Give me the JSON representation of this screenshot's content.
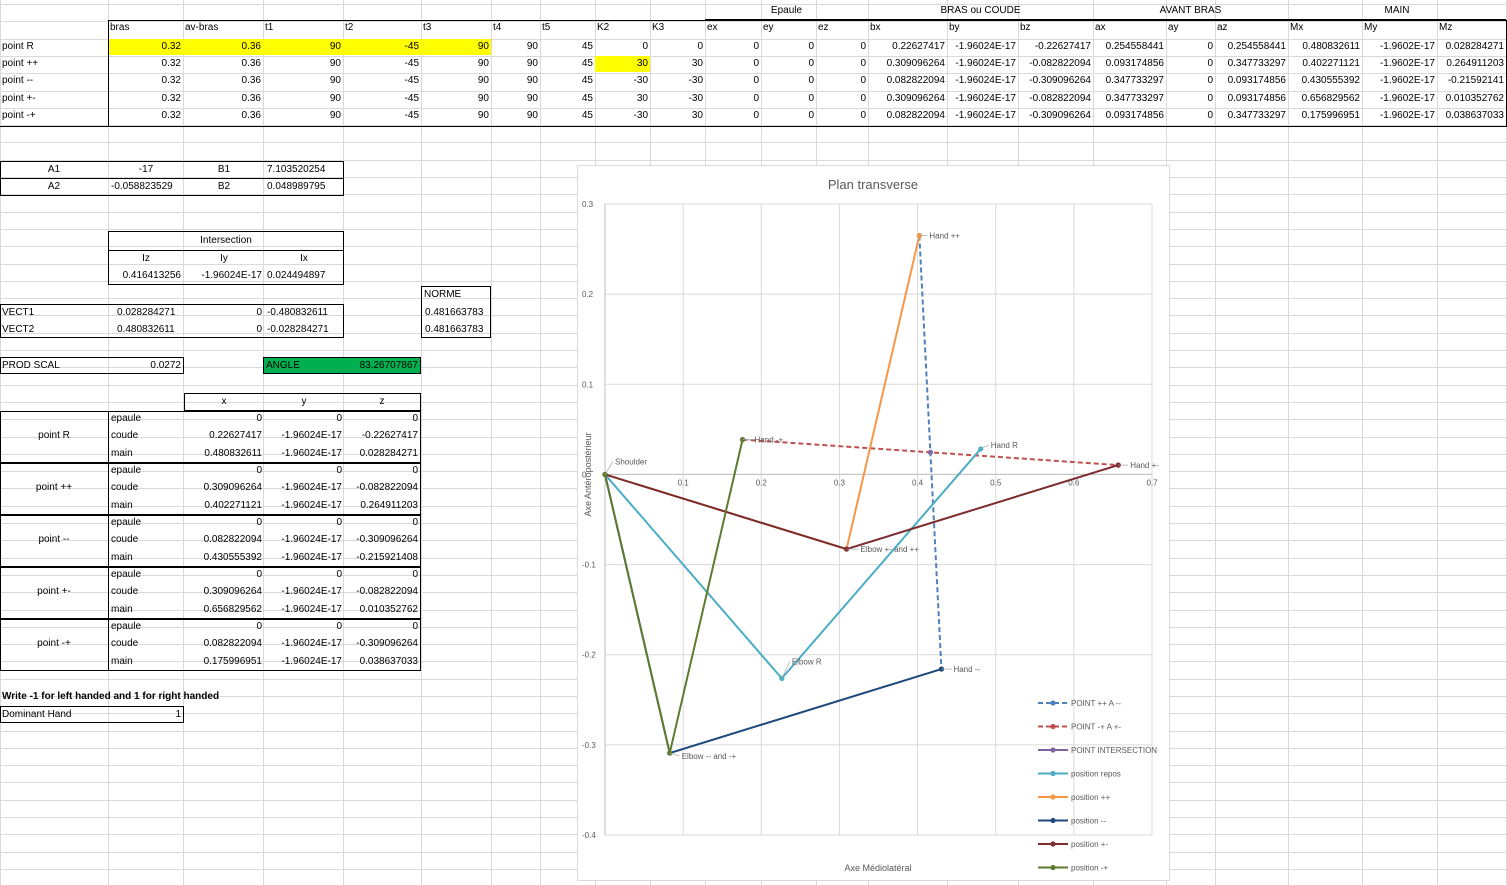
{
  "top": {
    "group_headers": [
      "Epaule",
      "BRAS ou COUDE",
      "AVANT BRAS",
      "MAIN"
    ],
    "columns": [
      "bras",
      "av-bras",
      "t1",
      "t2",
      "t3",
      "t4",
      "t5",
      "K2",
      "K3",
      "ex",
      "ey",
      "ez",
      "bx",
      "by",
      "bz",
      "ax",
      "ay",
      "az",
      "Mx",
      "My",
      "Mz"
    ],
    "rows": [
      {
        "label": "point R",
        "values": [
          "0.32",
          "0.36",
          "90",
          "-45",
          "90",
          "90",
          "45",
          "0",
          "0",
          "0",
          "0",
          "0",
          "0.22627417",
          "-1.96024E-17",
          "-0.22627417",
          "0.254558441",
          "0",
          "0.254558441",
          "0.480832611",
          "-1.9602E-17",
          "0.028284271"
        ]
      },
      {
        "label": "point ++",
        "values": [
          "0.32",
          "0.36",
          "90",
          "-45",
          "90",
          "90",
          "45",
          "30",
          "30",
          "0",
          "0",
          "0",
          "0.309096264",
          "-1.96024E-17",
          "-0.082822094",
          "0.093174856",
          "0",
          "0.347733297",
          "0.402271121",
          "-1.9602E-17",
          "0.264911203"
        ]
      },
      {
        "label": "point --",
        "values": [
          "0.32",
          "0.36",
          "90",
          "-45",
          "90",
          "90",
          "45",
          "-30",
          "-30",
          "0",
          "0",
          "0",
          "0.082822094",
          "-1.96024E-17",
          "-0.309096264",
          "0.347733297",
          "0",
          "0.093174856",
          "0.430555392",
          "-1.9602E-17",
          "-0.21592141"
        ]
      },
      {
        "label": "point +-",
        "values": [
          "0.32",
          "0.36",
          "90",
          "-45",
          "90",
          "90",
          "45",
          "30",
          "-30",
          "0",
          "0",
          "0",
          "0.309096264",
          "-1.96024E-17",
          "-0.082822094",
          "0.347733297",
          "0",
          "0.093174856",
          "0.656829562",
          "-1.9602E-17",
          "0.010352762"
        ]
      },
      {
        "label": "point -+",
        "values": [
          "0.32",
          "0.36",
          "90",
          "-45",
          "90",
          "90",
          "45",
          "-30",
          "30",
          "0",
          "0",
          "0",
          "0.082822094",
          "-1.96024E-17",
          "-0.309096264",
          "0.093174856",
          "0",
          "0.347733297",
          "0.175996951",
          "-1.9602E-17",
          "0.038637033"
        ]
      }
    ]
  },
  "coeffs": {
    "a1_label": "A1",
    "a1": "-17",
    "b1_label": "B1",
    "b1": "7.103520254",
    "a2_label": "A2",
    "a2": "-0.058823529",
    "b2_label": "B2",
    "b2": "0.048989795"
  },
  "intersection": {
    "title": "Intersection",
    "iz_label": "Iz",
    "iy_label": "Iy",
    "ix_label": "Ix",
    "iz": "0.416413256",
    "iy": "-1.96024E-17",
    "ix": "0.024494897"
  },
  "vectors": {
    "norme_label": "NORME",
    "vect1_label": "VECT1",
    "vect1": [
      "0.028284271",
      "0",
      "-0.480832611"
    ],
    "vect1_norme": "0.481663783",
    "vect2_label": "VECT2",
    "vect2": [
      "0.480832611",
      "0",
      "-0.028284271"
    ],
    "vect2_norme": "0.481663783"
  },
  "prod": {
    "label": "PROD SCAL",
    "value": "0.0272",
    "angle_label": "ANGLE",
    "angle": "83.26707867"
  },
  "points_table": {
    "headers": [
      "x",
      "y",
      "z"
    ],
    "sublabels": [
      "epaule",
      "coude",
      "main"
    ],
    "groups": [
      {
        "label": "point R",
        "rows": [
          [
            "0",
            "0",
            "0"
          ],
          [
            "0.22627417",
            "-1.96024E-17",
            "-0.22627417"
          ],
          [
            "0.480832611",
            "-1.96024E-17",
            "0.028284271"
          ]
        ]
      },
      {
        "label": "point ++",
        "rows": [
          [
            "0",
            "0",
            "0"
          ],
          [
            "0.309096264",
            "-1.96024E-17",
            "-0.082822094"
          ],
          [
            "0.402271121",
            "-1.96024E-17",
            "0.264911203"
          ]
        ]
      },
      {
        "label": "point --",
        "rows": [
          [
            "0",
            "0",
            "0"
          ],
          [
            "0.082822094",
            "-1.96024E-17",
            "-0.309096264"
          ],
          [
            "0.430555392",
            "-1.96024E-17",
            "-0.215921408"
          ]
        ]
      },
      {
        "label": "point +-",
        "rows": [
          [
            "0",
            "0",
            "0"
          ],
          [
            "0.309096264",
            "-1.96024E-17",
            "-0.082822094"
          ],
          [
            "0.656829562",
            "-1.96024E-17",
            "0.010352762"
          ]
        ]
      },
      {
        "label": "point -+",
        "rows": [
          [
            "0",
            "0",
            "0"
          ],
          [
            "0.082822094",
            "-1.96024E-17",
            "-0.309096264"
          ],
          [
            "0.175996951",
            "-1.96024E-17",
            "0.038637033"
          ]
        ]
      }
    ]
  },
  "dominant": {
    "instruction": "Write -1 for left handed and 1 for right handed",
    "label": "Dominant Hand",
    "value": "1"
  },
  "chart_data": {
    "type": "scatter",
    "title": "Plan transverse",
    "xlabel": "Axe Médiolatéral",
    "ylabel": "Axe Antéropostérieur",
    "xlim": [
      0,
      0.7
    ],
    "ylim": [
      -0.4,
      0.3
    ],
    "x_ticks": [
      "0.1",
      "0.2",
      "0.3",
      "0.4",
      "0.5",
      "0.6",
      "0.7"
    ],
    "y_ticks": [
      "0.3",
      "0.2",
      "0.1",
      "0",
      "-0.1",
      "-0.2",
      "-0.3",
      "-0.4"
    ],
    "series": [
      {
        "name": "POINT ++ A --",
        "color": "#4f81bd",
        "dashed": true,
        "x": [
          0.402271121,
          0.430555392
        ],
        "y": [
          0.264911203,
          -0.215921408
        ]
      },
      {
        "name": "POINT -+ A +-",
        "color": "#c0504d",
        "dashed": true,
        "x": [
          0.175996951,
          0.656829562
        ],
        "y": [
          0.038637033,
          0.010352762
        ]
      },
      {
        "name": "POINT INTERSECTION",
        "color": "#8064a2",
        "dashed": false,
        "x": [
          0.416413256
        ],
        "y": [
          0.024494897
        ]
      },
      {
        "name": "position repos",
        "color": "#4bacc6",
        "dashed": false,
        "x": [
          0,
          0.22627417,
          0.480832611
        ],
        "y": [
          0,
          -0.22627417,
          0.028284271
        ]
      },
      {
        "name": "position ++",
        "color": "#f79646",
        "dashed": false,
        "x": [
          0,
          0.309096264,
          0.402271121
        ],
        "y": [
          0,
          -0.082822094,
          0.264911203
        ]
      },
      {
        "name": "position --",
        "color": "#1f497d",
        "dashed": false,
        "x": [
          0,
          0.082822094,
          0.430555392
        ],
        "y": [
          0,
          -0.309096264,
          -0.215921408
        ]
      },
      {
        "name": "position +-",
        "color": "#7b2c2c",
        "dashed": false,
        "x": [
          0,
          0.309096264,
          0.656829562
        ],
        "y": [
          0,
          -0.082822094,
          0.010352762
        ]
      },
      {
        "name": "position -+",
        "color": "#5e7b2f",
        "dashed": false,
        "x": [
          0,
          0.082822094,
          0.175996951
        ],
        "y": [
          0,
          -0.309096264,
          0.038637033
        ]
      }
    ],
    "annotations": [
      {
        "text": "Hand ++",
        "x": 0.402271121,
        "y": 0.264911203
      },
      {
        "text": "Hand -+",
        "x": 0.175996951,
        "y": 0.038637033
      },
      {
        "text": "Hand R",
        "x": 0.480832611,
        "y": 0.028284271
      },
      {
        "text": "Hand +-",
        "x": 0.656829562,
        "y": 0.010352762
      },
      {
        "text": "Shoulder",
        "x": 0,
        "y": 0
      },
      {
        "text": "Elbow +- and ++",
        "x": 0.309096264,
        "y": -0.082822094
      },
      {
        "text": "Elbow R",
        "x": 0.22627417,
        "y": -0.22627417
      },
      {
        "text": "Hand --",
        "x": 0.430555392,
        "y": -0.215921408
      },
      {
        "text": "Elbow -- and -+",
        "x": 0.082822094,
        "y": -0.309096264
      }
    ]
  }
}
